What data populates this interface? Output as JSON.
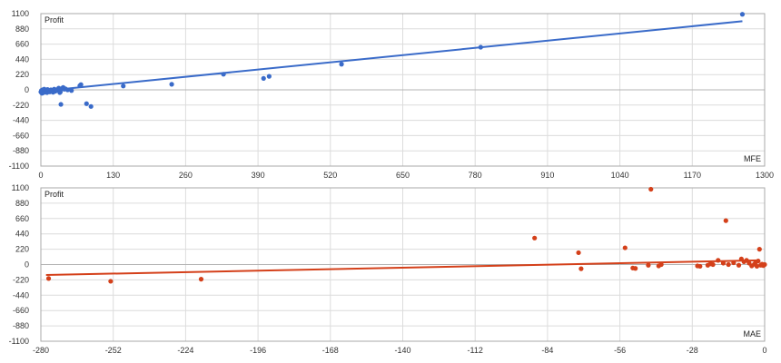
{
  "chart_data": [
    {
      "type": "scatter",
      "title": "",
      "ylabel": "Profit",
      "xlabel": "MFE",
      "xlim": [
        0,
        1300
      ],
      "ylim": [
        -1100,
        1100
      ],
      "x_ticks": [
        "0",
        "130",
        "260",
        "390",
        "520",
        "650",
        "780",
        "910",
        "1040",
        "1170",
        "1300"
      ],
      "y_ticks": [
        "1100",
        "880",
        "660",
        "440",
        "220",
        "0",
        "-220",
        "-440",
        "-660",
        "-880",
        "-1100"
      ],
      "color": "#3a6bc9",
      "trend": {
        "x": [
          0,
          1260
        ],
        "y": [
          -20,
          990
        ]
      },
      "points": [
        {
          "x": 0,
          "y": -30
        },
        {
          "x": 1,
          "y": -10
        },
        {
          "x": 2,
          "y": -50
        },
        {
          "x": 3,
          "y": 0
        },
        {
          "x": 4,
          "y": -20
        },
        {
          "x": 5,
          "y": -40
        },
        {
          "x": 6,
          "y": 10
        },
        {
          "x": 7,
          "y": -30
        },
        {
          "x": 8,
          "y": 0
        },
        {
          "x": 9,
          "y": -15
        },
        {
          "x": 10,
          "y": -20
        },
        {
          "x": 11,
          "y": -40
        },
        {
          "x": 12,
          "y": 5
        },
        {
          "x": 13,
          "y": -25
        },
        {
          "x": 14,
          "y": -5
        },
        {
          "x": 16,
          "y": -30
        },
        {
          "x": 18,
          "y": 0
        },
        {
          "x": 20,
          "y": -10
        },
        {
          "x": 22,
          "y": -35
        },
        {
          "x": 24,
          "y": 10
        },
        {
          "x": 26,
          "y": -20
        },
        {
          "x": 28,
          "y": 0
        },
        {
          "x": 30,
          "y": -5
        },
        {
          "x": 32,
          "y": 25
        },
        {
          "x": 34,
          "y": -40
        },
        {
          "x": 35,
          "y": -30
        },
        {
          "x": 36,
          "y": -210
        },
        {
          "x": 38,
          "y": 20
        },
        {
          "x": 40,
          "y": 35
        },
        {
          "x": 42,
          "y": 10
        },
        {
          "x": 44,
          "y": 15
        },
        {
          "x": 48,
          "y": 0
        },
        {
          "x": 55,
          "y": -10
        },
        {
          "x": 70,
          "y": 60
        },
        {
          "x": 72,
          "y": 75
        },
        {
          "x": 82,
          "y": -200
        },
        {
          "x": 90,
          "y": -240
        },
        {
          "x": 148,
          "y": 55
        },
        {
          "x": 235,
          "y": 80
        },
        {
          "x": 328,
          "y": 225
        },
        {
          "x": 400,
          "y": 165
        },
        {
          "x": 410,
          "y": 195
        },
        {
          "x": 540,
          "y": 370
        },
        {
          "x": 790,
          "y": 615
        },
        {
          "x": 1260,
          "y": 1090
        }
      ]
    },
    {
      "type": "scatter",
      "title": "",
      "ylabel": "Profit",
      "xlabel": "MAE",
      "xlim": [
        -280,
        0
      ],
      "ylim": [
        -1100,
        1100
      ],
      "x_ticks": [
        "-280",
        "-252",
        "-224",
        "-196",
        "-168",
        "-140",
        "-112",
        "-84",
        "-56",
        "-28",
        "0"
      ],
      "y_ticks": [
        "1100",
        "880",
        "660",
        "440",
        "220",
        "0",
        "-220",
        "-440",
        "-660",
        "-880",
        "-1100"
      ],
      "color": "#d4401a",
      "trend": {
        "x": [
          -278,
          -2
        ],
        "y": [
          -150,
          60
        ]
      },
      "points": [
        {
          "x": -277,
          "y": -200
        },
        {
          "x": -253,
          "y": -240
        },
        {
          "x": -218,
          "y": -210
        },
        {
          "x": -89,
          "y": 380
        },
        {
          "x": -72,
          "y": 170
        },
        {
          "x": -71,
          "y": -60
        },
        {
          "x": -54,
          "y": 240
        },
        {
          "x": -51,
          "y": -50
        },
        {
          "x": -50,
          "y": -55
        },
        {
          "x": -45,
          "y": -10
        },
        {
          "x": -44,
          "y": 1080
        },
        {
          "x": -41,
          "y": -20
        },
        {
          "x": -40,
          "y": 0
        },
        {
          "x": -26,
          "y": -20
        },
        {
          "x": -25,
          "y": -25
        },
        {
          "x": -22,
          "y": -10
        },
        {
          "x": -21,
          "y": 10
        },
        {
          "x": -20,
          "y": 0
        },
        {
          "x": -18,
          "y": 60
        },
        {
          "x": -16,
          "y": 20
        },
        {
          "x": -15,
          "y": 630
        },
        {
          "x": -14,
          "y": 0
        },
        {
          "x": -12,
          "y": 25
        },
        {
          "x": -10,
          "y": -10
        },
        {
          "x": -9,
          "y": 80
        },
        {
          "x": -8,
          "y": 40
        },
        {
          "x": -7,
          "y": 60
        },
        {
          "x": -6,
          "y": 20
        },
        {
          "x": -5,
          "y": -20
        },
        {
          "x": -4,
          "y": 5
        },
        {
          "x": -3.5,
          "y": 30
        },
        {
          "x": -3,
          "y": -25
        },
        {
          "x": -2.5,
          "y": 50
        },
        {
          "x": -2,
          "y": 220
        },
        {
          "x": -1.5,
          "y": -10
        },
        {
          "x": -1,
          "y": 5
        },
        {
          "x": -0.5,
          "y": -15
        },
        {
          "x": 0,
          "y": 0
        }
      ]
    }
  ]
}
